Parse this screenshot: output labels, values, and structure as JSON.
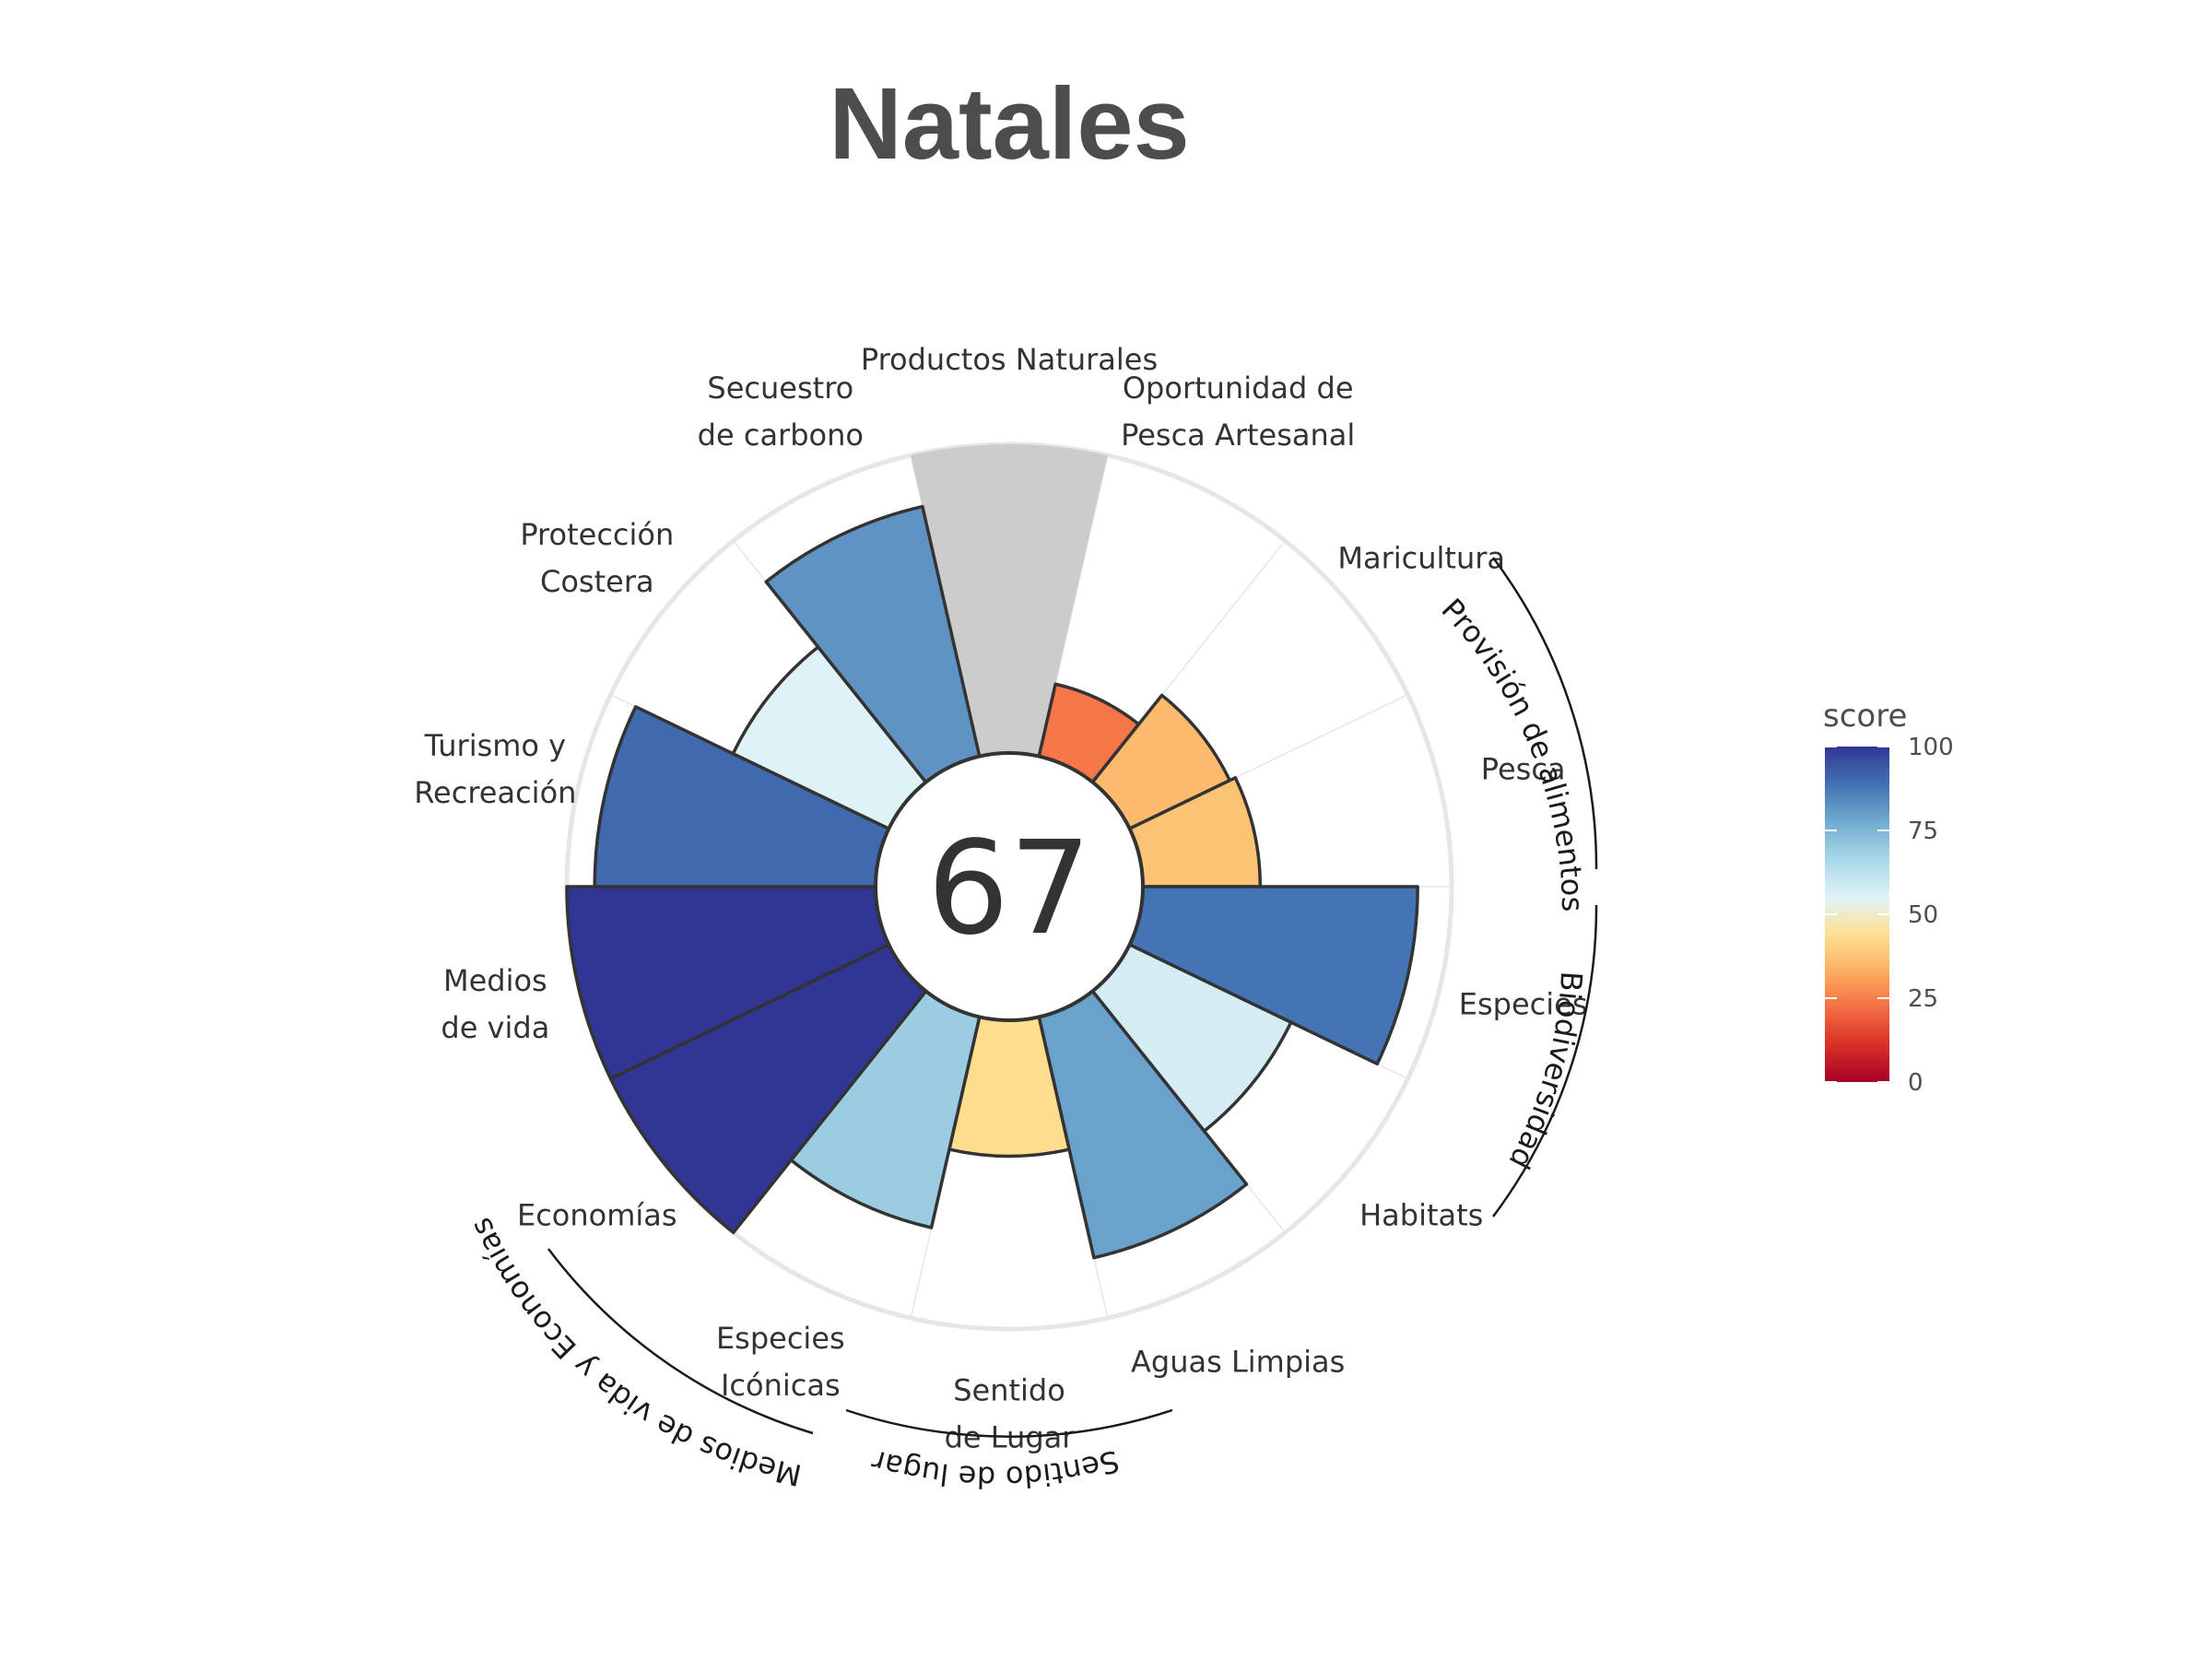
{
  "chart_data": {
    "type": "flower",
    "title": "Natales",
    "center_score": "67",
    "petals": [
      {
        "label": "Productos Naturales",
        "value": null,
        "no_data": true
      },
      {
        "label": "Oportunidad de\nPesca Artesanal",
        "value": 24
      },
      {
        "label": "Maricultura",
        "value": 36
      },
      {
        "label": "Pesca",
        "value": 38
      },
      {
        "label": "Especies",
        "value": 89
      },
      {
        "label": "Habitats",
        "value": 58
      },
      {
        "label": "Aguas Limpias",
        "value": 80
      },
      {
        "label": "Sentido\nde Lugar",
        "value": 44
      },
      {
        "label": "Especies\nIcónicas",
        "value": 70
      },
      {
        "label": "Economías",
        "value": 100
      },
      {
        "label": "Medios\nde vida",
        "value": 100
      },
      {
        "label": "Turismo y\nRecreación",
        "value": 91
      },
      {
        "label": "Protección\nCostera",
        "value": 56
      },
      {
        "label": "Secuestro\nde carbono",
        "value": 83
      }
    ],
    "groups": [
      {
        "label": "Provisión de alimentos"
      },
      {
        "label": "Biodiversidad"
      },
      {
        "label": "Sentido de lugar"
      },
      {
        "label": "Medios de vida y Economías"
      }
    ],
    "legend": {
      "title": "score",
      "ticks": [
        "0",
        "25",
        "50",
        "75",
        "100"
      ],
      "range": [
        0,
        100
      ]
    },
    "colors": {
      "no_data": "#cccccc",
      "outline": "#333333",
      "grid": "#e6e6e6",
      "scale": [
        "#a50026",
        "#d73027",
        "#f46d43",
        "#fdae61",
        "#fee090",
        "#e0f3f8",
        "#abd9e9",
        "#74add1",
        "#4575b4",
        "#313695"
      ]
    }
  }
}
